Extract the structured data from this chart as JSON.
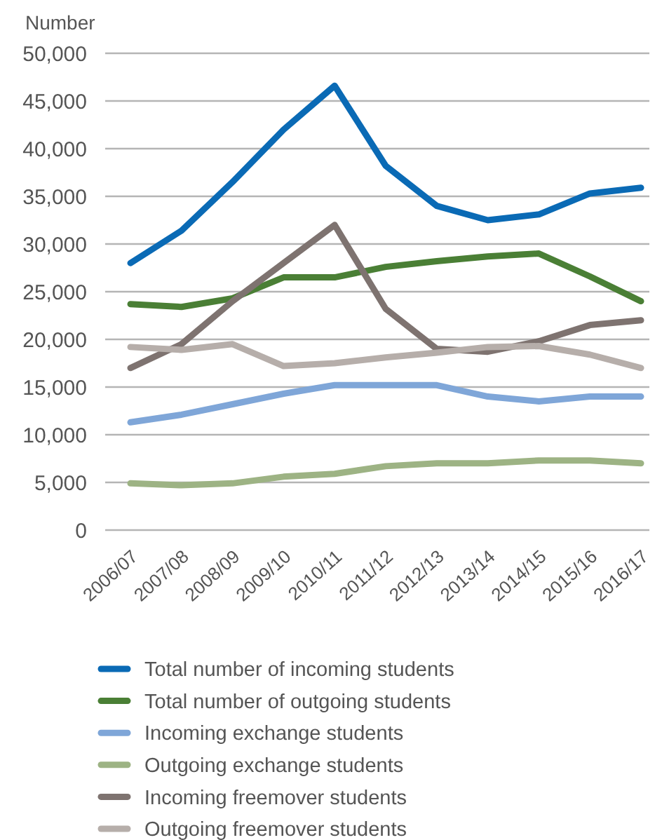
{
  "chart_data": {
    "type": "line",
    "ylabel": "Number",
    "categories": [
      "2006/07",
      "2007/08",
      "2008/09",
      "2009/10",
      "2010/11",
      "2011/12",
      "2012/13",
      "2013/14",
      "2014/15",
      "2015/16",
      "2016/17"
    ],
    "ylim": [
      0,
      50000
    ],
    "yticks": [
      {
        "value": 0,
        "label": "0"
      },
      {
        "value": 5000,
        "label": "5,000"
      },
      {
        "value": 10000,
        "label": "10,000"
      },
      {
        "value": 15000,
        "label": "15,000"
      },
      {
        "value": 20000,
        "label": "20,000"
      },
      {
        "value": 25000,
        "label": "25,000"
      },
      {
        "value": 30000,
        "label": "30,000"
      },
      {
        "value": 35000,
        "label": "35,000"
      },
      {
        "value": 40000,
        "label": "40,000"
      },
      {
        "value": 45000,
        "label": "45,000"
      },
      {
        "value": 50000,
        "label": "50,000"
      }
    ],
    "grid": "y",
    "legend": "bottom",
    "marker": "none",
    "line_style": "solid",
    "series": [
      {
        "name": "Total number of incoming students",
        "color": "#0a6ab5",
        "values": [
          28000,
          31400,
          36500,
          42000,
          46600,
          38200,
          34000,
          32500,
          33100,
          35300,
          35900
        ]
      },
      {
        "name": "Total number of outgoing students",
        "color": "#4a7f35",
        "values": [
          23700,
          23400,
          24300,
          26500,
          26500,
          27600,
          28200,
          28700,
          29000,
          26600,
          24000
        ]
      },
      {
        "name": "Incoming exchange students",
        "color": "#7fa6d8",
        "values": [
          11300,
          12100,
          13200,
          14300,
          15200,
          15200,
          15200,
          14000,
          13500,
          14000,
          14000
        ]
      },
      {
        "name": "Outgoing exchange students",
        "color": "#9db384",
        "values": [
          4900,
          4700,
          4900,
          5600,
          5900,
          6700,
          7000,
          7000,
          7300,
          7300,
          7000
        ]
      },
      {
        "name": "Incoming freemover students",
        "color": "#7e7370",
        "values": [
          17000,
          19500,
          24000,
          28000,
          32000,
          23200,
          19000,
          18700,
          19800,
          21500,
          22000
        ]
      },
      {
        "name": "Outgoing freemover students",
        "color": "#b6aeaa",
        "values": [
          19200,
          18900,
          19500,
          17200,
          17500,
          18100,
          18600,
          19200,
          19300,
          18400,
          17000
        ]
      }
    ]
  }
}
